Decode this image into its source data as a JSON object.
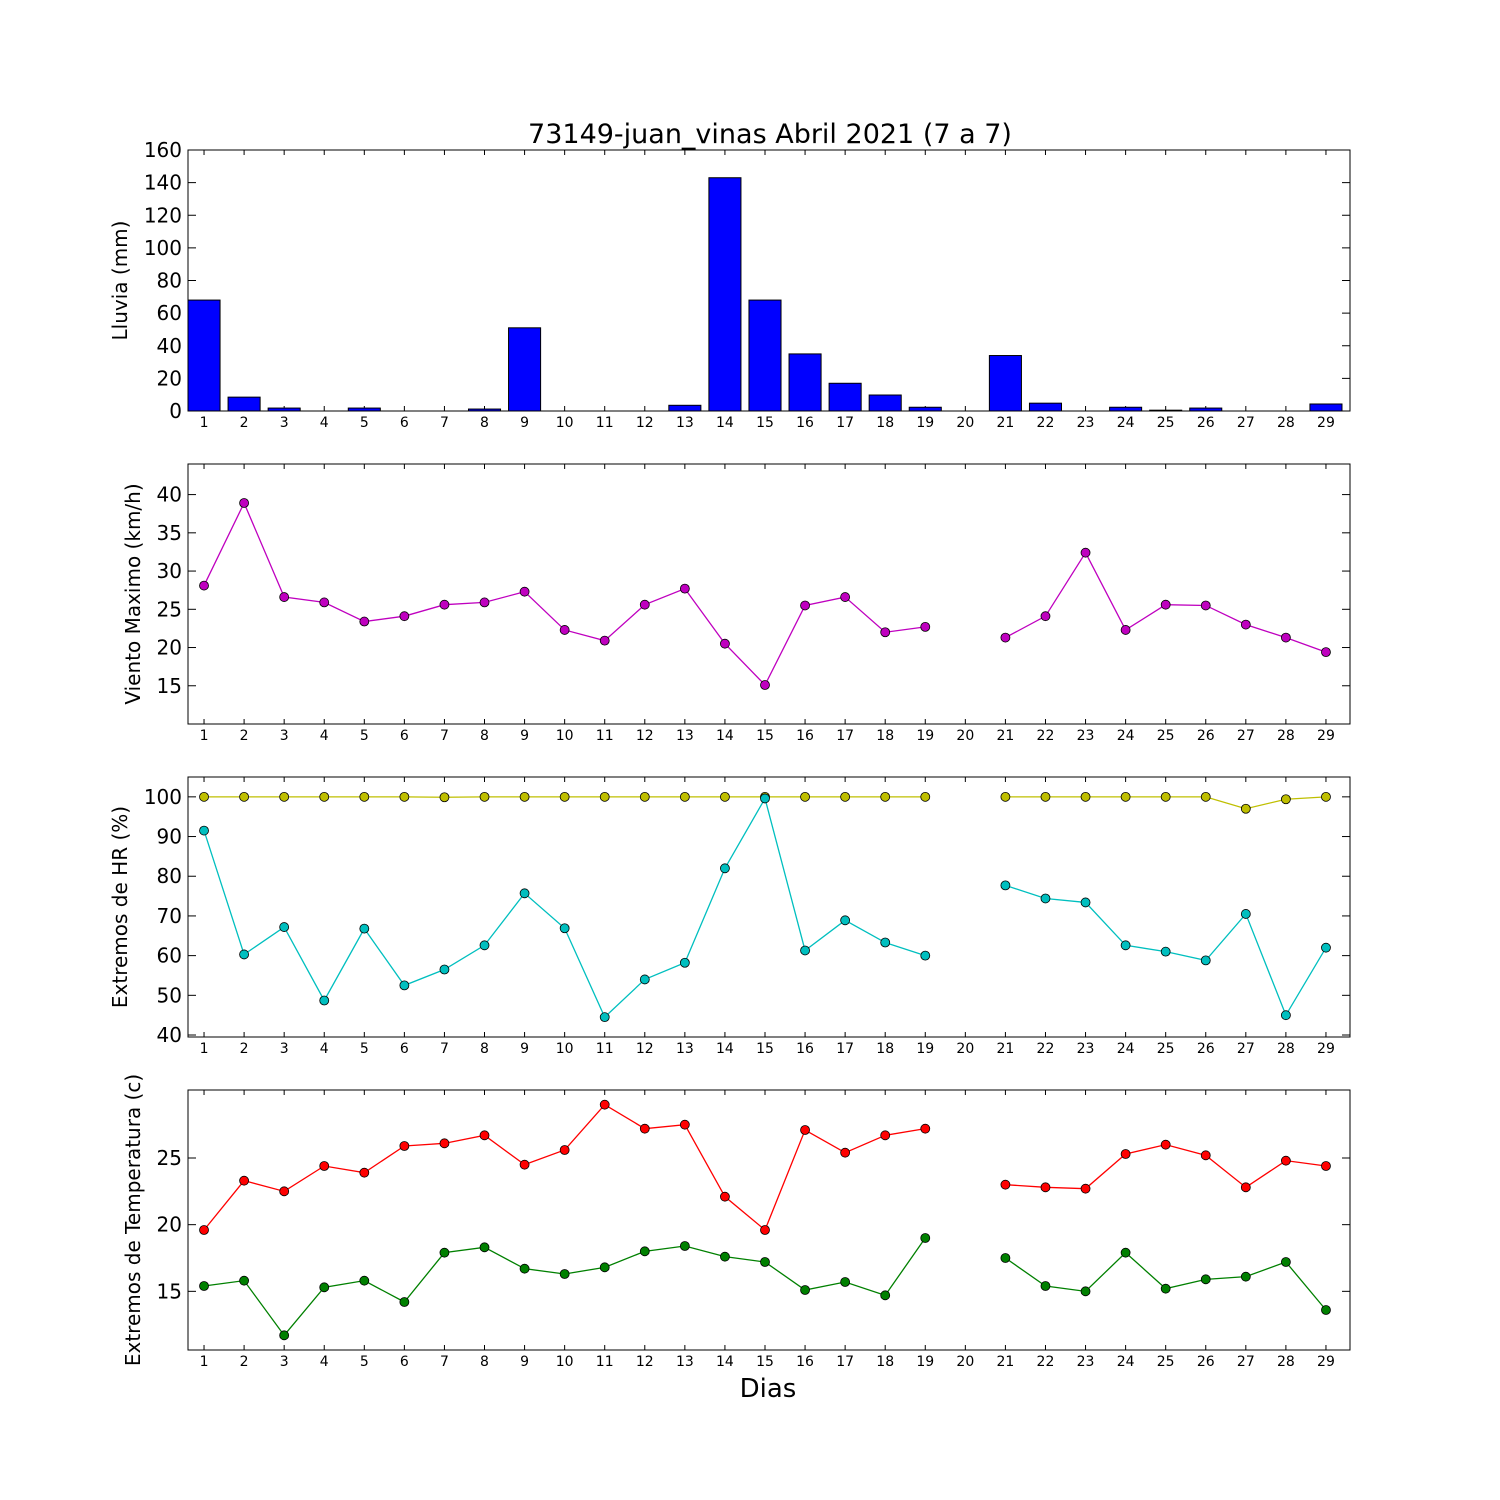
{
  "figure_title": "73149-juan_vinas Abril 2021  (7 a 7)",
  "xlabel": "Dias",
  "chart_data": [
    {
      "type": "bar",
      "ylabel": "Lluvia (mm)",
      "ylim": [
        0,
        160
      ],
      "yticks": [
        0,
        20,
        40,
        60,
        80,
        100,
        120,
        140,
        160
      ],
      "x": [
        1,
        2,
        3,
        4,
        5,
        6,
        7,
        8,
        9,
        10,
        11,
        12,
        13,
        14,
        15,
        16,
        17,
        18,
        19,
        20,
        21,
        22,
        23,
        24,
        25,
        26,
        27,
        28,
        29
      ],
      "series": [
        {
          "color": "#0000ff",
          "values": [
            68,
            8.5,
            1.8,
            0,
            1.8,
            0,
            0,
            1.2,
            51,
            0,
            0,
            0,
            3.5,
            143,
            68,
            35,
            17,
            9.8,
            2.3,
            0,
            34,
            4.8,
            0,
            2.3,
            0.5,
            1.8,
            0,
            0,
            4.3
          ]
        }
      ]
    },
    {
      "type": "line",
      "ylabel": "Viento Maximo (km/h)",
      "ylim": [
        10,
        44
      ],
      "yticks": [
        15,
        20,
        25,
        30,
        35,
        40
      ],
      "x": [
        1,
        2,
        3,
        4,
        5,
        6,
        7,
        8,
        9,
        10,
        11,
        12,
        13,
        14,
        15,
        16,
        17,
        18,
        19,
        20,
        21,
        22,
        23,
        24,
        25,
        26,
        27,
        28,
        29
      ],
      "series": [
        {
          "color": "#bf00bf",
          "values": [
            28.1,
            38.9,
            26.6,
            25.9,
            23.4,
            24.1,
            25.6,
            25.9,
            27.3,
            22.3,
            20.9,
            25.6,
            27.7,
            20.5,
            15.1,
            25.5,
            26.6,
            22.0,
            22.7,
            null,
            21.3,
            24.1,
            32.4,
            22.3,
            25.6,
            25.5,
            23.0,
            21.3,
            19.4
          ]
        }
      ]
    },
    {
      "type": "line",
      "ylabel": "Extremos de HR (%)",
      "ylim": [
        39.5,
        105
      ],
      "yticks": [
        40,
        50,
        60,
        70,
        80,
        90,
        100
      ],
      "x": [
        1,
        2,
        3,
        4,
        5,
        6,
        7,
        8,
        9,
        10,
        11,
        12,
        13,
        14,
        15,
        16,
        17,
        18,
        19,
        20,
        21,
        22,
        23,
        24,
        25,
        26,
        27,
        28,
        29
      ],
      "series": [
        {
          "color": "#bfbf00",
          "values": [
            100,
            100,
            100,
            100,
            100,
            100,
            99.9,
            100,
            100,
            100,
            100,
            100,
            100,
            100,
            100,
            100,
            100,
            100,
            100,
            null,
            100,
            100,
            100,
            100,
            100,
            100,
            97,
            99.4,
            100
          ]
        },
        {
          "color": "#00bfbf",
          "values": [
            91.5,
            60.3,
            67.2,
            48.7,
            66.8,
            52.5,
            56.5,
            62.6,
            75.7,
            66.9,
            44.5,
            54.0,
            58.2,
            82.0,
            99.6,
            61.3,
            68.9,
            63.3,
            60.0,
            null,
            77.7,
            74.4,
            73.4,
            62.6,
            61.0,
            58.8,
            70.5,
            45.0,
            62.0
          ]
        }
      ]
    },
    {
      "type": "line",
      "ylabel": "Extremos de Temperatura (c)",
      "ylim": [
        10.6,
        30.1
      ],
      "yticks": [
        15,
        20,
        25
      ],
      "x": [
        1,
        2,
        3,
        4,
        5,
        6,
        7,
        8,
        9,
        10,
        11,
        12,
        13,
        14,
        15,
        16,
        17,
        18,
        19,
        20,
        21,
        22,
        23,
        24,
        25,
        26,
        27,
        28,
        29
      ],
      "series": [
        {
          "color": "#ff0000",
          "values": [
            19.6,
            23.3,
            22.5,
            24.4,
            23.9,
            25.9,
            26.1,
            26.7,
            24.5,
            25.6,
            29.0,
            27.2,
            27.5,
            22.1,
            19.6,
            27.1,
            25.4,
            26.7,
            27.2,
            null,
            23.0,
            22.8,
            22.7,
            25.3,
            26.0,
            25.2,
            22.8,
            24.8,
            24.4
          ]
        },
        {
          "color": "#008000",
          "values": [
            15.4,
            15.8,
            11.7,
            15.3,
            15.8,
            14.2,
            17.9,
            18.3,
            16.7,
            16.3,
            16.8,
            18.0,
            18.4,
            17.6,
            17.2,
            15.1,
            15.7,
            14.7,
            19.0,
            null,
            17.5,
            15.4,
            15.0,
            17.9,
            15.2,
            15.9,
            16.1,
            17.2,
            13.6
          ]
        }
      ]
    }
  ]
}
